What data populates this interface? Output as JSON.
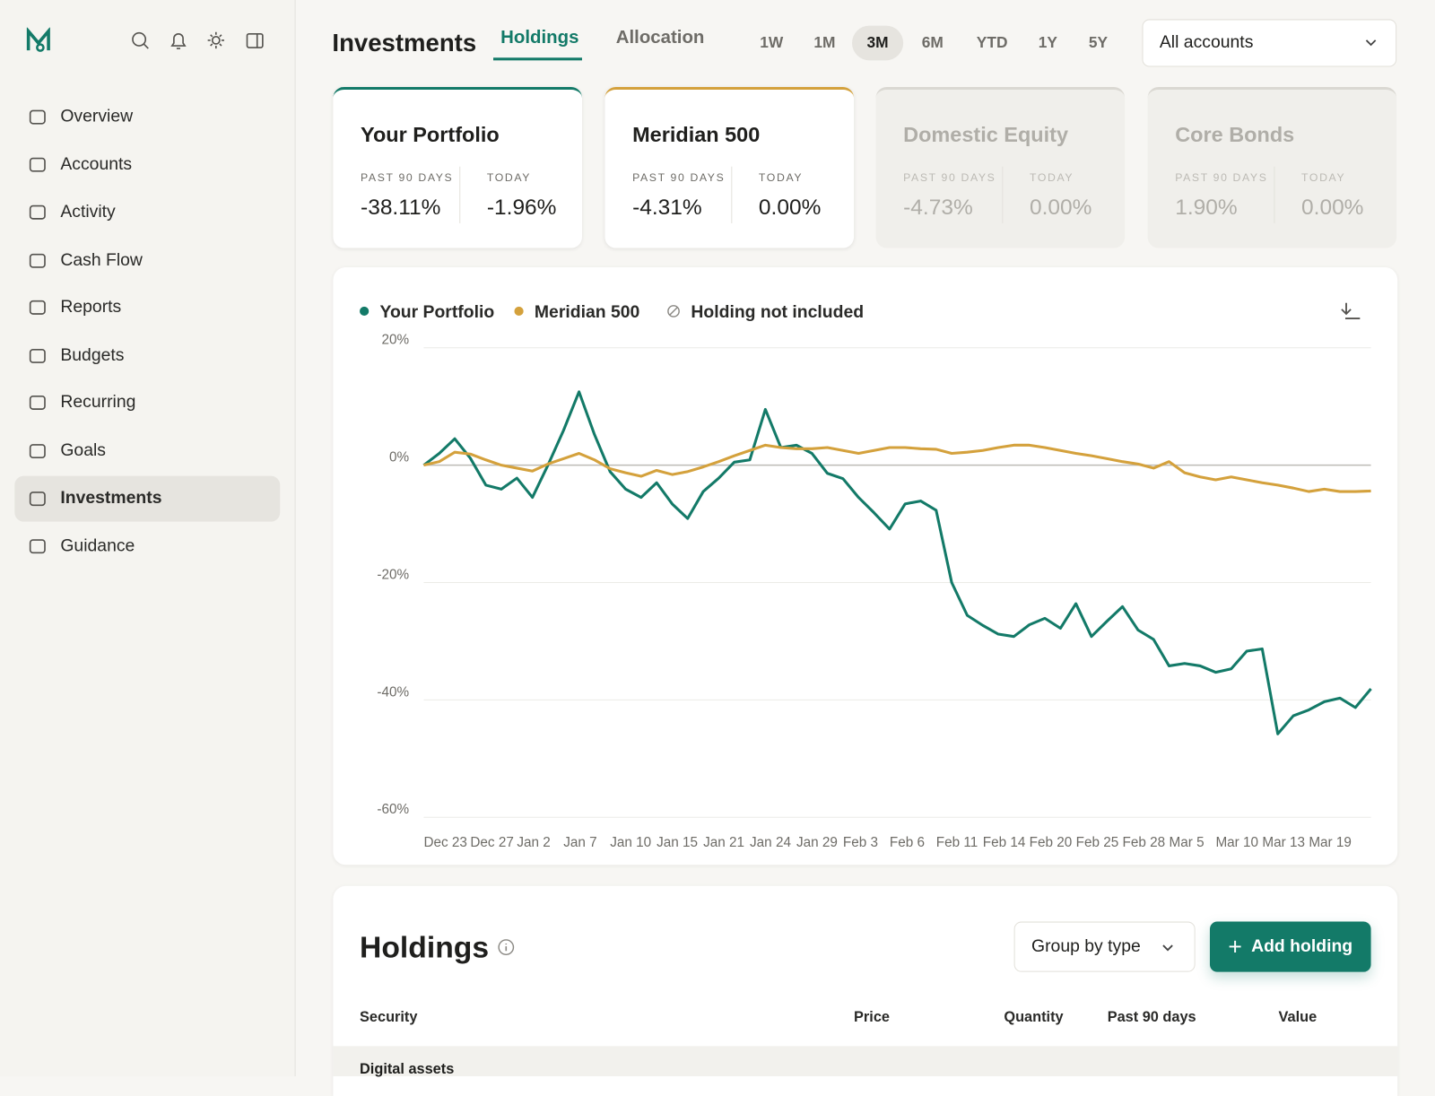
{
  "sidebar": {
    "nav": [
      "Overview",
      "Accounts",
      "Activity",
      "Cash Flow",
      "Reports",
      "Budgets",
      "Recurring",
      "Goals",
      "Investments",
      "Guidance"
    ]
  },
  "header": {
    "title": "Investments",
    "tabs": [
      "Holdings",
      "Allocation"
    ],
    "ranges": [
      "1W",
      "1M",
      "3M",
      "6M",
      "YTD",
      "1Y",
      "5Y"
    ],
    "account": "All accounts"
  },
  "cards": [
    {
      "title": "Your Portfolio",
      "past_label": "PAST 90 DAYS",
      "past": "-38.11%",
      "today_label": "TODAY",
      "today": "-1.96%"
    },
    {
      "title": "Meridian 500",
      "past_label": "PAST 90 DAYS",
      "past": "-4.31%",
      "today_label": "TODAY",
      "today": "0.00%"
    },
    {
      "title": "Domestic Equity",
      "past_label": "PAST 90 DAYS",
      "past": "-4.73%",
      "today_label": "TODAY",
      "today": "0.00%"
    },
    {
      "title": "Core Bonds",
      "past_label": "PAST 90 DAYS",
      "past": "1.90%",
      "today_label": "TODAY",
      "today": "0.00%"
    }
  ],
  "chart_data": {
    "type": "line",
    "legend_note": "Holding not included",
    "categories": [
      "Dec 23",
      null,
      null,
      "Dec 27",
      null,
      null,
      "Jan 2",
      null,
      null,
      "Jan 7",
      null,
      null,
      "Jan 10",
      null,
      null,
      "Jan 15",
      null,
      null,
      "Jan 21",
      null,
      null,
      "Jan 24",
      null,
      null,
      "Jan 29",
      null,
      null,
      "Feb 3",
      null,
      null,
      "Feb 6",
      null,
      null,
      "Feb 11",
      null,
      null,
      "Feb 14",
      null,
      null,
      "Feb 20",
      null,
      null,
      "Feb 25",
      null,
      null,
      "Feb 28",
      null,
      null,
      "Mar 5",
      null,
      null,
      "Mar 10",
      null,
      null,
      "Mar 13",
      null,
      null,
      "Mar 19",
      null,
      null,
      null,
      null
    ],
    "series": [
      {
        "name": "Your Portfolio",
        "color": "#137a68",
        "values": [
          0,
          2,
          4.5,
          1.2,
          -3.4,
          -4.1,
          -2.2,
          -5.5,
          0,
          5.9,
          12.5,
          5.2,
          -1.1,
          -4.1,
          -5.5,
          -3,
          -6.6,
          -9.1,
          -4.5,
          -2.2,
          0.5,
          0.9,
          9.5,
          3,
          3.4,
          2,
          -1.4,
          -2.3,
          -5.5,
          -8.1,
          -10.9,
          -6.6,
          -6.1,
          -7.7,
          -20,
          -25.6,
          -27.3,
          -28.8,
          -29.2,
          -27.2,
          -26.1,
          -27.8,
          -23.6,
          -29.2,
          -26.6,
          -24.1,
          -28.1,
          -29.7,
          -34.2,
          -33.8,
          -34.2,
          -35.3,
          -34.7,
          -31.7,
          -31.3,
          -45.8,
          -42.7,
          -41.7,
          -40.3,
          -39.7,
          -41.3,
          -38.1
        ]
      },
      {
        "name": "Meridian 500",
        "color": "#d4a13c",
        "values": [
          0,
          0.6,
          2.2,
          1.9,
          0.9,
          0,
          -0.5,
          -1,
          0.2,
          1.1,
          2,
          0.9,
          -0.6,
          -1.3,
          -1.9,
          -0.9,
          -1.6,
          -1.1,
          -0.3,
          0.6,
          1.6,
          2.5,
          3.4,
          3,
          2.8,
          2.8,
          3,
          2.5,
          2,
          2.5,
          3,
          3,
          2.8,
          2.7,
          2,
          2.2,
          2.5,
          3,
          3.4,
          3.4,
          3,
          2.5,
          2,
          1.6,
          1.1,
          0.6,
          0.2,
          -0.5,
          0.6,
          -1.3,
          -2,
          -2.5,
          -2,
          -2.5,
          -3,
          -3.4,
          -3.9,
          -4.5,
          -4.1,
          -4.5,
          -4.5,
          -4.4
        ]
      }
    ],
    "ylim": [
      -60,
      20
    ],
    "yticks": [
      {
        "value": -60,
        "label": "-60%"
      },
      {
        "value": -40,
        "label": "-40%"
      },
      {
        "value": -20,
        "label": "-20%"
      },
      {
        "value": 0,
        "label": "0%"
      },
      {
        "value": 20,
        "label": "20%"
      }
    ],
    "grid": true
  },
  "holdings": {
    "title": "Holdings",
    "group_by": "Group by type",
    "add": "Add holding",
    "columns": [
      "Security",
      "Price",
      "Quantity",
      "Past 90 days",
      "Value"
    ],
    "group": "Digital assets"
  }
}
